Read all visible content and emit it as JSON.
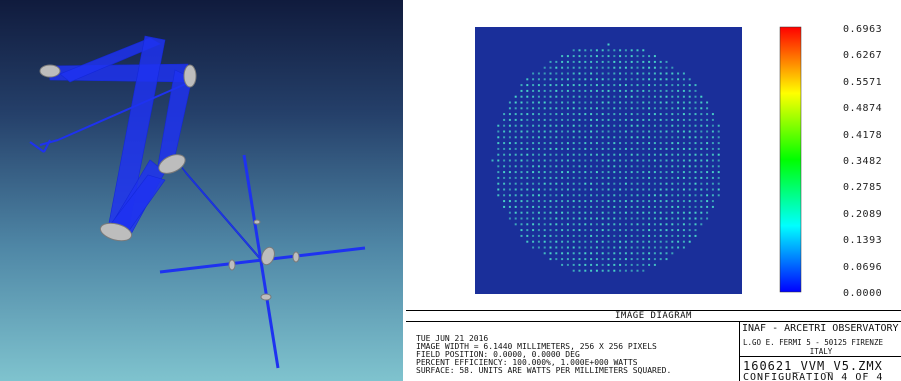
{
  "layout_view": {
    "colors": {
      "ray": "#1e32f0",
      "mirror": "#bdbdbd"
    }
  },
  "spot_diagram": {
    "colors": {
      "background": "#1a2f9a",
      "spot": "#4ad6c8"
    },
    "color_scale": {
      "stops": [
        "#ff0000",
        "#ffff00",
        "#00ff00",
        "#00ffff",
        "#0000ff"
      ],
      "labels": [
        "0.6963",
        "0.6267",
        "0.5571",
        "0.4874",
        "0.4178",
        "0.3482",
        "0.2785",
        "0.2089",
        "0.1393",
        "0.0696",
        "0.0000"
      ]
    },
    "title": "IMAGE DIAGRAM",
    "info_lines": [
      "TUE JUN 21 2016",
      "IMAGE WIDTH = 6.1440 MILLIMETERS, 256 X 256 PIXELS",
      "FIELD POSITION: 0.0000, 0.0000 DEG",
      "PERCENT EFFICIENCY: 100.000%, 1.000E+000 WATTS",
      "SURFACE: 58. UNITS ARE WATTS PER MILLIMETERS SQUARED."
    ],
    "organization": {
      "name": "INAF - ARCETRI OBSERVATORY",
      "address": "L.GO E. FERMI 5 - 50125 FIRENZE",
      "country": "ITALY"
    },
    "file_name": "160621_VVM_V5.ZMX",
    "configuration": "CONFIGURATION 4 OF 4"
  }
}
